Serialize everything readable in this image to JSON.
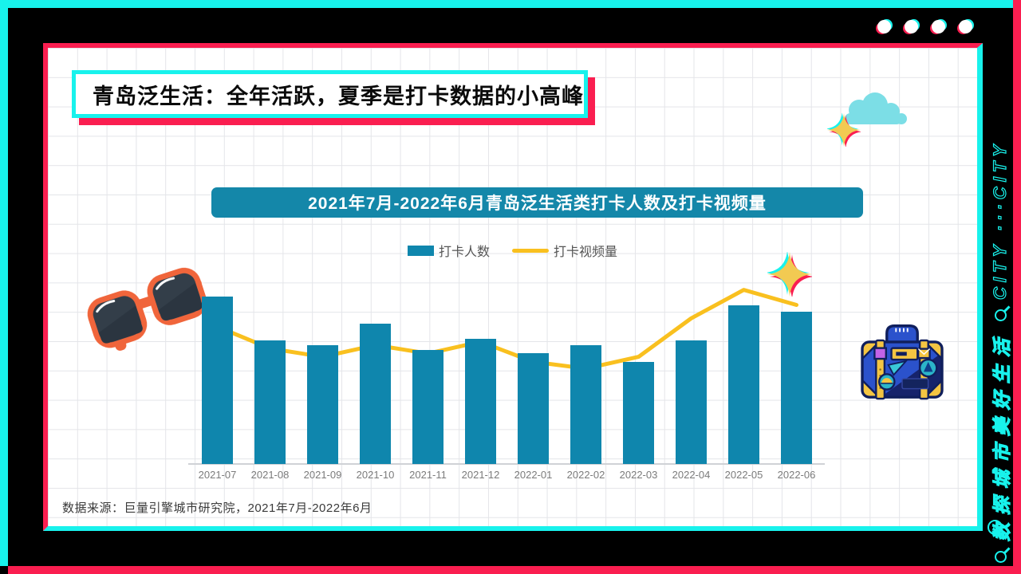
{
  "frame": {
    "brand_cyan": "#18F2EC",
    "brand_pink": "#FA1E50",
    "window_dots": 4
  },
  "title": {
    "text": "青岛泛生活：全年活跃，夏季是打卡数据的小高峰"
  },
  "chart": {
    "banner": "2021年7月-2022年6月青岛泛生活类打卡人数及打卡视频量",
    "legend": [
      {
        "label": "打卡人数",
        "type": "bar",
        "color": "#0F86AD"
      },
      {
        "label": "打卡视频量",
        "type": "line",
        "color": "#F9C01F"
      }
    ]
  },
  "chart_data": {
    "type": "bar",
    "title": "2021年7月-2022年6月青岛泛生活类打卡人数及打卡视频量",
    "categories": [
      "2021-07",
      "2021-08",
      "2021-09",
      "2021-10",
      "2021-11",
      "2021-12",
      "2022-01",
      "2022-02",
      "2022-03",
      "2022-04",
      "2022-05",
      "2022-06"
    ],
    "series": [
      {
        "name": "打卡人数",
        "type": "bar",
        "color": "#0F86AD",
        "values": [
          100,
          74,
          71,
          84,
          68,
          75,
          66,
          71,
          61,
          74,
          95,
          91
        ]
      },
      {
        "name": "打卡视频量",
        "type": "line",
        "color": "#F9C01F",
        "values": [
          82,
          69,
          64,
          71,
          66,
          73,
          61,
          57,
          64,
          87,
          104,
          95
        ]
      }
    ],
    "xlabel": "",
    "ylabel": "",
    "value_axis": {
      "visible": false,
      "range": [
        0,
        115
      ],
      "note": "relative index estimated from pixel heights; no y-axis shown"
    },
    "legend_position": "top-center",
    "grid": "page squared-paper background only"
  },
  "footer": {
    "source": "数据来源：巨量引擎城市研究院，2021年7月-2022年6月"
  },
  "sidebar": {
    "tagline_cn": "数探城市美好生活",
    "tagline_en": "CITY ···CITY",
    "icons": [
      "magnifier-icon",
      "magnifier-icon",
      "magnifier-icon"
    ]
  },
  "decor": {
    "icons": [
      "sunglasses-icon",
      "cloud-icon",
      "sparkle-icon",
      "sparkle-icon",
      "suitcase-icon"
    ],
    "colors": {
      "cloud": "#7CDEE6",
      "sunglasses": "#F0653B",
      "sparkle": "#F2CA52",
      "suitcase_blue": "#2B52CC",
      "suitcase_navy": "#16236B",
      "suitcase_yellow": "#F4C542"
    }
  }
}
